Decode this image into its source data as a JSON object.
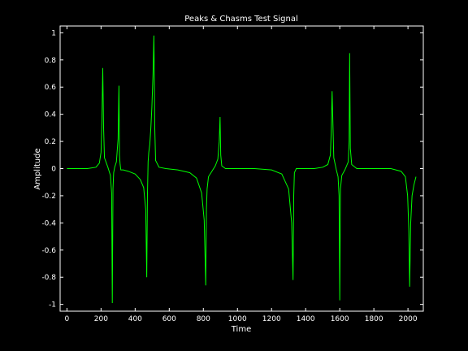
{
  "chart_data": {
    "type": "line",
    "title": "Peaks & Chasms Test Signal",
    "xlabel": "Time",
    "ylabel": "Amplitude",
    "xlim": [
      -40,
      2090
    ],
    "ylim": [
      -1.05,
      1.05
    ],
    "xticks": [
      0,
      200,
      400,
      600,
      800,
      1000,
      1200,
      1400,
      1600,
      1800,
      2000
    ],
    "xtick_labels": [
      "0",
      "200",
      "400",
      "600",
      "800",
      "1000",
      "1200",
      "1400",
      "1600",
      "1800",
      "2000"
    ],
    "yticks": [
      1,
      0.8,
      0.6,
      0.4,
      0.2,
      0,
      -0.2,
      -0.4,
      -0.6,
      -0.8,
      -1
    ],
    "ytick_labels": [
      "1",
      "0.8",
      "0.6",
      "0.4",
      "0.2",
      "0",
      "-0.2",
      "-0.4",
      "-0.6",
      "-0.8",
      "-1"
    ],
    "grid": false,
    "background": "#000000",
    "axis_color": "#ffffff",
    "series": [
      {
        "color": "#00ff00",
        "x": [
          0,
          120,
          170,
          190,
          200,
          205,
          210,
          215,
          220,
          240,
          255,
          262,
          266,
          270,
          274,
          280,
          290,
          300,
          305,
          308,
          312,
          316,
          330,
          360,
          400,
          430,
          450,
          462,
          468,
          472,
          476,
          480,
          486,
          492,
          498,
          505,
          510,
          515,
          520,
          540,
          580,
          650,
          720,
          760,
          790,
          805,
          814,
          818,
          822,
          830,
          850,
          870,
          885,
          893,
          898,
          902,
          908,
          930,
          980,
          1100,
          1200,
          1260,
          1300,
          1318,
          1326,
          1330,
          1334,
          1345,
          1380,
          1450,
          1500,
          1530,
          1545,
          1550,
          1555,
          1565,
          1580,
          1590,
          1596,
          1600,
          1604,
          1612,
          1630,
          1650,
          1655,
          1658,
          1662,
          1670,
          1700,
          1800,
          1900,
          1960,
          1985,
          1998,
          2005,
          2010,
          2016,
          2024,
          2035,
          2047
        ],
        "y": [
          0,
          0,
          0.01,
          0.04,
          0.12,
          0.35,
          0.74,
          0.3,
          0.08,
          0.01,
          -0.05,
          -0.18,
          -0.99,
          -0.15,
          -0.03,
          0.01,
          0.05,
          0.22,
          0.61,
          0.1,
          0.03,
          -0.01,
          -0.01,
          -0.02,
          -0.04,
          -0.08,
          -0.14,
          -0.3,
          -0.8,
          -0.2,
          0.05,
          0.12,
          0.18,
          0.3,
          0.45,
          0.7,
          0.98,
          0.3,
          0.06,
          0.01,
          0,
          -0.01,
          -0.03,
          -0.07,
          -0.18,
          -0.38,
          -0.86,
          -0.3,
          -0.15,
          -0.06,
          -0.02,
          0.02,
          0.07,
          0.2,
          0.38,
          0.1,
          0.02,
          0,
          0,
          0,
          -0.01,
          -0.04,
          -0.15,
          -0.4,
          -0.82,
          -0.2,
          -0.03,
          0,
          0,
          0,
          0.01,
          0.03,
          0.1,
          0.27,
          0.57,
          0.08,
          -0.01,
          -0.06,
          -0.2,
          -0.97,
          -0.15,
          -0.05,
          -0.01,
          0.05,
          0.2,
          0.85,
          0.15,
          0.03,
          0,
          0,
          0,
          -0.02,
          -0.06,
          -0.2,
          -0.45,
          -0.87,
          -0.4,
          -0.2,
          -0.12,
          -0.06
        ]
      }
    ]
  }
}
